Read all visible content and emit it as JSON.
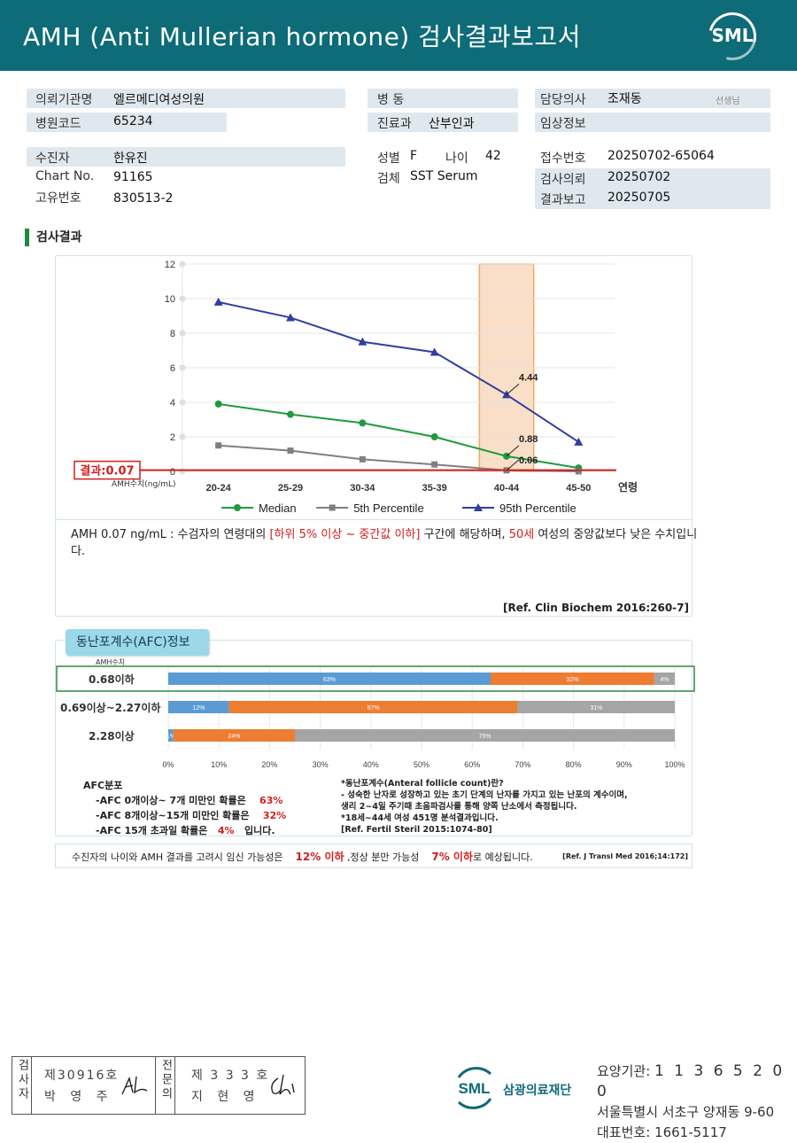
{
  "header": {
    "title": "AMH (Anti Mullerian hormone) 검사결과보고서",
    "logo": "SML"
  },
  "patient": {
    "request_org_label": "의뢰기관명",
    "request_org": "엘르메디여성의원",
    "hospital_code_label": "병원코드",
    "hospital_code": "65234",
    "ward_label": "병 동",
    "ward": "",
    "dept_label": "진료과",
    "dept": "산부인과",
    "doctor_label": "담당의사",
    "doctor": "조재동",
    "doctor_suffix": "선생님",
    "clinical_label": "임상정보",
    "clinical": "",
    "name_label": "수진자",
    "name": "한유진",
    "chart_label": "Chart No.",
    "chart": "91165",
    "id_label": "고유번호",
    "id": "830513-2",
    "sex_label": "성별",
    "sex": "F",
    "age_label": "나이",
    "age": "42",
    "specimen_label": "검체",
    "specimen": "SST Serum",
    "receipt_label": "접수번호",
    "receipt": "20250702-65064",
    "request_date_label": "검사의뢰",
    "request_date": "20250702",
    "report_date_label": "결과보고",
    "report_date": "20250705"
  },
  "section_title": "검사결과",
  "chart_data": {
    "type": "line",
    "categories": [
      "20-24",
      "25-29",
      "30-34",
      "35-39",
      "40-44",
      "45-50"
    ],
    "xlabel": "연령",
    "ylabel": "AMH수치(ng/mL)",
    "ylim": [
      0,
      12
    ],
    "yticks": [
      0,
      2,
      4,
      6,
      8,
      10,
      12
    ],
    "grid": true,
    "legend_position": "bottom",
    "highlight_category": "40-44",
    "series": [
      {
        "name": "Median",
        "values": [
          3.9,
          3.3,
          2.8,
          2.0,
          0.88,
          0.2
        ],
        "color": "#1f9a3e",
        "marker": "circle"
      },
      {
        "name": "5th Percentile",
        "values": [
          1.5,
          1.2,
          0.7,
          0.4,
          0.06,
          0.0
        ],
        "color": "#7f7f7f",
        "marker": "square"
      },
      {
        "name": "95th Percentile",
        "values": [
          9.8,
          8.9,
          7.5,
          6.9,
          4.44,
          1.7
        ],
        "color": "#2f3f9e",
        "marker": "triangle"
      }
    ],
    "annotations": [
      "4.44",
      "0.88",
      "0.06"
    ],
    "result_value": 0.07,
    "result_label": "결과:0.07"
  },
  "comment": {
    "p1": "AMH  0.07 ng/mL : 수검자의 연령대의 ",
    "p2": "[하위 5% 이상 ~ 중간값 이하]",
    "p3": "  구간에 해당하며, ",
    "p4": "50세",
    "p5": " 여성의 중앙값보다 낮은 수치입니다.",
    "ref": "[Ref. Clin Biochem 2016:260-7]"
  },
  "afc": {
    "title": "동난포계수(AFC)정보",
    "row_header": "AMH수치",
    "rows": [
      {
        "label": "0.68이하",
        "segments": [
          63,
          32,
          4
        ],
        "labels": [
          "63%",
          "32%",
          "4%"
        ]
      },
      {
        "label": "0.69이상~2.27이하",
        "segments": [
          12,
          57,
          31
        ],
        "labels": [
          "12%",
          "57%",
          "31%"
        ]
      },
      {
        "label": "2.28이상",
        "segments": [
          1,
          24,
          75
        ],
        "labels": [
          "1%",
          "24%",
          "75%"
        ]
      }
    ],
    "axis_ticks": [
      "0%",
      "10%",
      "20%",
      "30%",
      "40%",
      "50%",
      "60%",
      "70%",
      "80%",
      "90%",
      "100%"
    ],
    "colors": [
      "#5b9bd5",
      "#ed7d31",
      "#a5a5a5"
    ],
    "notes_title": "AFC분포",
    "note1a": "-AFC  0개이상~ 7개 미만인 확률은",
    "note1b": "63%",
    "note2a": "-AFC  8개이상~15개 미만인 확률은",
    "note2b": "32%",
    "note3a": "-AFC  15개 초과일 확률은",
    "note3b": "4%",
    "note3c": "입니다.",
    "def1": "*동난포계수(Anteral follicle count)란?",
    "def2": "- 성숙한 난자로 성장하고 있는 초기 단계의 난자를 가지고 있는 난포의 계수이며,",
    "def3": "   생리 2~4일 주기때 초음파검사를 통해 양쪽 난소에서 측정됩니다.",
    "def4": "*18세~44세 여성 451명 분석결과입니다.",
    "def5": "[Ref. Fertil Steril 2015:1074-80]"
  },
  "summary": {
    "s1": "수진자의  나이와 AMH 결과를 고려시 임신 가능성은",
    "s2": "12% 이하",
    "s3": ",정상 분만 가능성",
    "s4": "7% 이하",
    "s5": "로 예상됩니다.",
    "ref": "[Ref. J Transl Med 2016;14:172]"
  },
  "signature": {
    "role1": "검사자",
    "id1": "제30916호",
    "name1": "박 영 주",
    "role2": "전문의",
    "id2": "제 3 3 3 호",
    "name2": "지 현 영"
  },
  "footer": {
    "org": "삼광의료재단",
    "logo": "SML",
    "code_label": "요양기관:",
    "code": "1 1 3 6 5 2 0 0",
    "address": "서울특별시 서초구 양재동 9-60",
    "phone_label": "대표번호:",
    "phone": "1661-5117"
  }
}
